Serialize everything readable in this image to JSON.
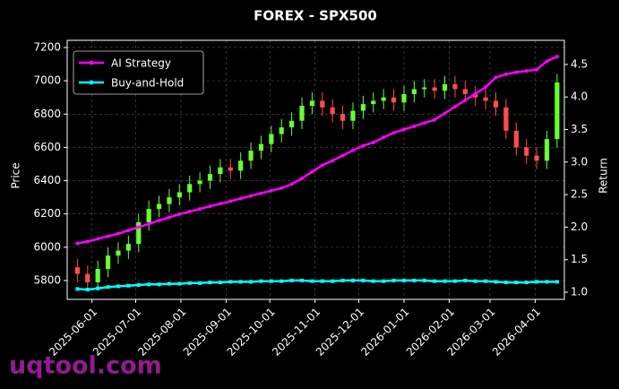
{
  "chart_data": {
    "type": "candlestick",
    "title": "FOREX - SPX500",
    "ylabel": "Price",
    "y2label": "Return",
    "watermark": "uqtool.com",
    "x": [
      "2025-05-22",
      "2025-05-29",
      "2025-06-05",
      "2025-06-12",
      "2025-06-19",
      "2025-06-26",
      "2025-07-03",
      "2025-07-10",
      "2025-07-17",
      "2025-07-24",
      "2025-07-31",
      "2025-08-07",
      "2025-08-14",
      "2025-08-21",
      "2025-08-28",
      "2025-09-04",
      "2025-09-11",
      "2025-09-18",
      "2025-09-25",
      "2025-10-02",
      "2025-10-09",
      "2025-10-16",
      "2025-10-23",
      "2025-10-30",
      "2025-11-06",
      "2025-11-13",
      "2025-11-20",
      "2025-11-27",
      "2025-12-04",
      "2025-12-11",
      "2025-12-18",
      "2025-12-25",
      "2026-01-01",
      "2026-01-08",
      "2026-01-15",
      "2026-01-22",
      "2026-01-29",
      "2026-02-05",
      "2026-02-12",
      "2026-02-19",
      "2026-02-26",
      "2026-03-05",
      "2026-03-12",
      "2026-03-19",
      "2026-03-26",
      "2026-04-02",
      "2026-04-09",
      "2026-04-16"
    ],
    "open": [
      5880,
      5840,
      5790,
      5870,
      5950,
      5980,
      6020,
      6150,
      6230,
      6260,
      6300,
      6330,
      6380,
      6400,
      6440,
      6480,
      6460,
      6520,
      6580,
      6620,
      6680,
      6720,
      6760,
      6850,
      6880,
      6840,
      6800,
      6760,
      6820,
      6860,
      6880,
      6900,
      6870,
      6920,
      6950,
      6960,
      6940,
      6980,
      6950,
      6920,
      6900,
      6880,
      6840,
      6700,
      6600,
      6550,
      6520,
      6650
    ],
    "high": [
      5930,
      5890,
      5920,
      6000,
      6030,
      6070,
      6200,
      6280,
      6310,
      6350,
      6380,
      6430,
      6450,
      6490,
      6530,
      6530,
      6570,
      6630,
      6670,
      6730,
      6770,
      6810,
      6900,
      6930,
      6930,
      6890,
      6850,
      6870,
      6910,
      6930,
      6950,
      6950,
      6970,
      7000,
      7010,
      7010,
      7030,
      7030,
      7000,
      6970,
      6950,
      6930,
      6890,
      6750,
      6650,
      6600,
      6700,
      7040
    ],
    "low": [
      5790,
      5740,
      5740,
      5820,
      5900,
      5930,
      5970,
      6100,
      6180,
      6210,
      6250,
      6280,
      6330,
      6350,
      6390,
      6410,
      6410,
      6470,
      6530,
      6570,
      6630,
      6670,
      6710,
      6800,
      6790,
      6750,
      6710,
      6710,
      6770,
      6810,
      6830,
      6820,
      6820,
      6870,
      6900,
      6890,
      6890,
      6900,
      6870,
      6850,
      6830,
      6790,
      6650,
      6550,
      6500,
      6470,
      6470,
      6600
    ],
    "close": [
      5840,
      5790,
      5870,
      5950,
      5980,
      6020,
      6150,
      6230,
      6260,
      6300,
      6330,
      6380,
      6400,
      6440,
      6480,
      6460,
      6520,
      6580,
      6620,
      6680,
      6720,
      6760,
      6850,
      6880,
      6840,
      6800,
      6760,
      6820,
      6860,
      6880,
      6900,
      6870,
      6920,
      6950,
      6960,
      6940,
      6980,
      6950,
      6920,
      6900,
      6880,
      6840,
      6700,
      6600,
      6550,
      6520,
      6650,
      6990
    ],
    "up_color": "#66ff33",
    "down_color": "#ff4d4d",
    "series": [
      {
        "name": "AI Strategy",
        "color": "#ff00ff",
        "axis": "y2",
        "values": [
          1.75,
          1.78,
          1.82,
          1.86,
          1.9,
          1.95,
          2.0,
          2.05,
          2.1,
          2.15,
          2.2,
          2.24,
          2.28,
          2.32,
          2.36,
          2.4,
          2.44,
          2.48,
          2.52,
          2.56,
          2.6,
          2.66,
          2.75,
          2.85,
          2.95,
          3.02,
          3.1,
          3.18,
          3.25,
          3.3,
          3.38,
          3.45,
          3.5,
          3.55,
          3.6,
          3.65,
          3.75,
          3.85,
          3.95,
          4.05,
          4.15,
          4.3,
          4.35,
          4.38,
          4.4,
          4.42,
          4.55,
          4.62
        ]
      },
      {
        "name": "Buy-and-Hold",
        "color": "#00ffff",
        "axis": "y2",
        "values": [
          1.05,
          1.04,
          1.06,
          1.08,
          1.09,
          1.1,
          1.11,
          1.12,
          1.12,
          1.13,
          1.13,
          1.14,
          1.14,
          1.15,
          1.15,
          1.16,
          1.16,
          1.16,
          1.17,
          1.17,
          1.17,
          1.18,
          1.18,
          1.17,
          1.17,
          1.17,
          1.18,
          1.18,
          1.18,
          1.17,
          1.17,
          1.18,
          1.18,
          1.18,
          1.18,
          1.17,
          1.17,
          1.17,
          1.18,
          1.17,
          1.17,
          1.16,
          1.15,
          1.15,
          1.15,
          1.16,
          1.16,
          1.16
        ]
      }
    ],
    "xlim": [
      "2025-05-15",
      "2026-04-21"
    ],
    "xticks": [
      "2025-06-01",
      "2025-07-01",
      "2025-08-01",
      "2025-09-01",
      "2025-10-01",
      "2025-11-01",
      "2025-12-01",
      "2026-01-01",
      "2026-02-01",
      "2026-03-01",
      "2026-04-01"
    ],
    "ylim": [
      5687,
      7243
    ],
    "yticks": [
      5800,
      6000,
      6200,
      6400,
      6600,
      6800,
      7000,
      7200
    ],
    "y2lim": [
      0.89,
      4.87
    ],
    "y2ticks": [
      {
        "value": 1,
        "label": "1.0"
      },
      1.5,
      {
        "value": 2,
        "label": "2.0"
      },
      2.5,
      {
        "value": 3,
        "label": "3.0"
      },
      3.5,
      {
        "value": 4,
        "label": "4.0"
      },
      4.5
    ],
    "grid": true,
    "legend": "upper left"
  }
}
